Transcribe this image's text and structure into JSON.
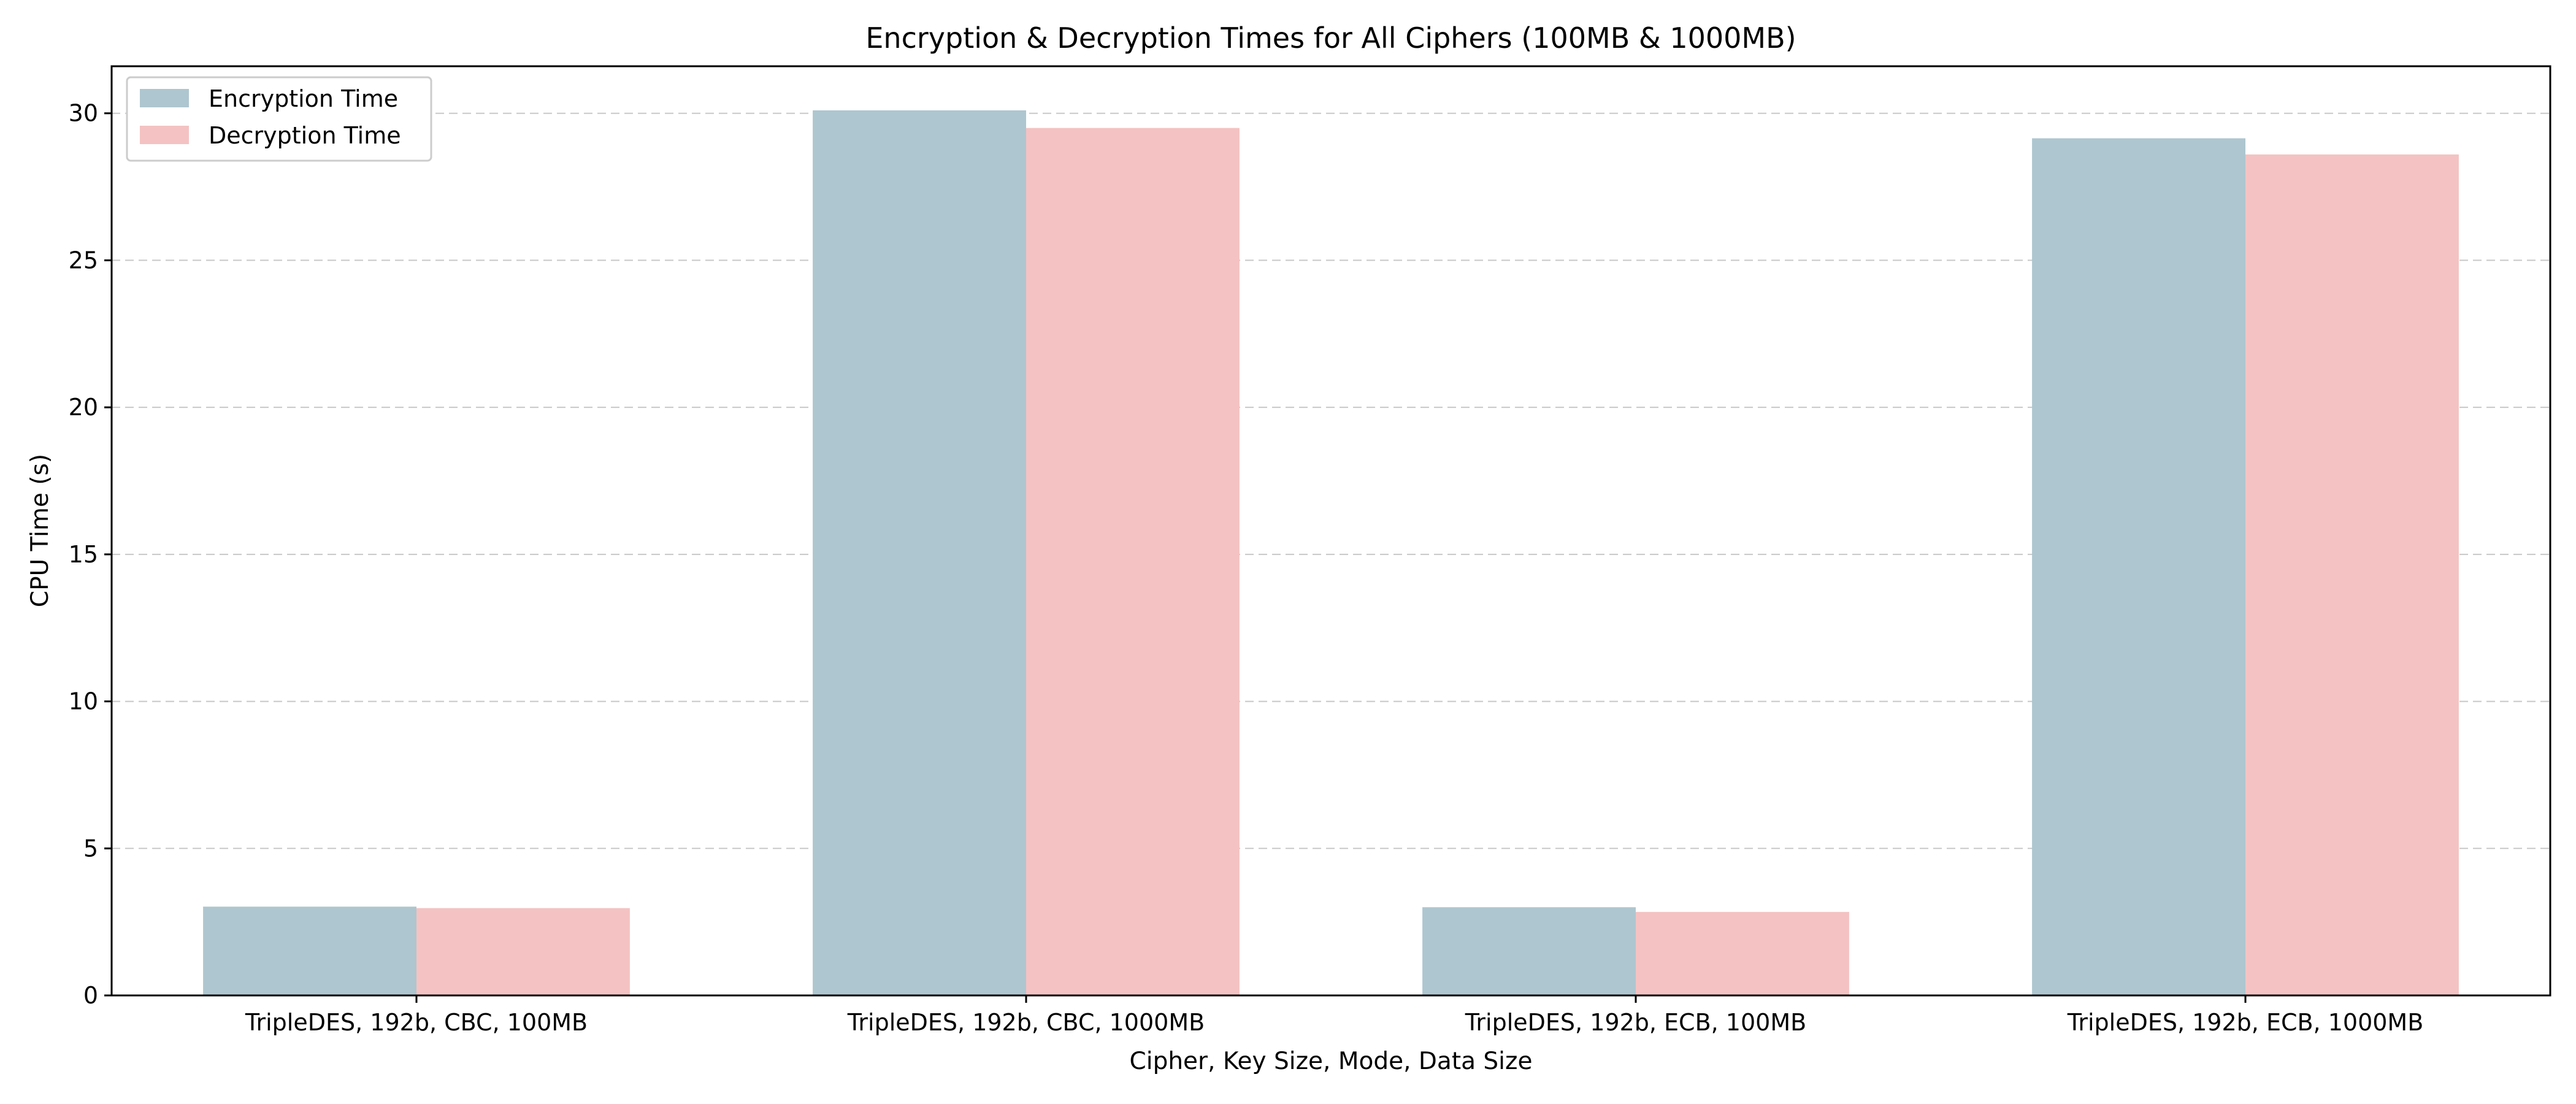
{
  "chart_data": {
    "type": "bar",
    "title": "Encryption & Decryption Times for All Ciphers (100MB & 1000MB)",
    "xlabel": "Cipher, Key Size, Mode, Data Size",
    "ylabel": "CPU Time (s)",
    "categories": [
      "TripleDES, 192b, CBC, 100MB",
      "TripleDES, 192b, CBC, 1000MB",
      "TripleDES, 192b, ECB, 100MB",
      "TripleDES, 192b, ECB, 1000MB"
    ],
    "series": [
      {
        "name": "Encryption Time",
        "color": "#aec6cf",
        "values": [
          3.02,
          30.1,
          3.0,
          29.15
        ]
      },
      {
        "name": "Decryption Time",
        "color": "#f4c2c2",
        "values": [
          2.97,
          29.5,
          2.84,
          28.6
        ]
      }
    ],
    "ylim": [
      0,
      31.6
    ],
    "yticks": [
      0,
      5,
      10,
      15,
      20,
      25,
      30
    ],
    "grid": "y-dashed",
    "legend_position": "top-left"
  }
}
